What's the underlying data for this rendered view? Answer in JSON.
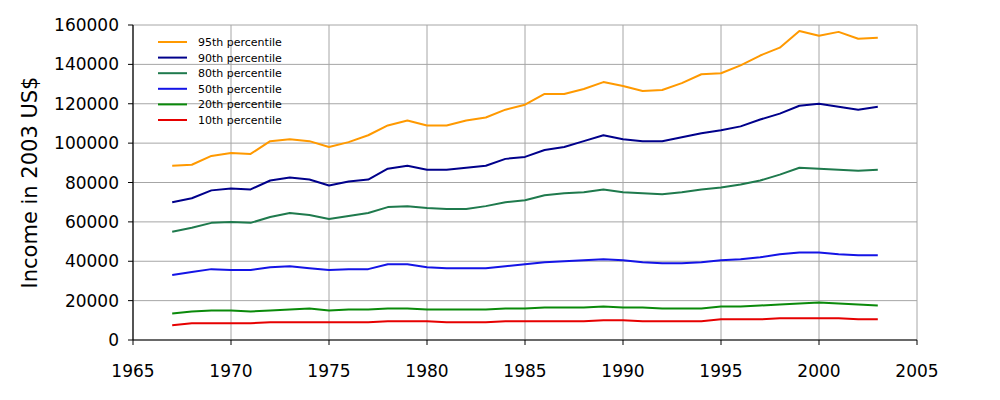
{
  "chart_data": {
    "type": "line",
    "y_label": "Income in 2003 US$",
    "x": [
      1967,
      1968,
      1969,
      1970,
      1971,
      1972,
      1973,
      1974,
      1975,
      1976,
      1977,
      1978,
      1979,
      1980,
      1981,
      1982,
      1983,
      1984,
      1985,
      1986,
      1987,
      1988,
      1989,
      1990,
      1991,
      1992,
      1993,
      1994,
      1995,
      1996,
      1997,
      1998,
      1999,
      2000,
      2001,
      2002,
      2003
    ],
    "xlim": [
      1965,
      2005
    ],
    "xticks": [
      1965,
      1970,
      1975,
      1980,
      1985,
      1990,
      1995,
      2000,
      2005
    ],
    "ylim": [
      0,
      160000
    ],
    "yticks": [
      0,
      20000,
      40000,
      60000,
      80000,
      100000,
      120000,
      140000,
      160000
    ],
    "grid": true,
    "legend": "upper left",
    "series": [
      {
        "name": "95th percentile",
        "color": "#ff9900",
        "values": [
          88500,
          89000,
          93500,
          95000,
          94500,
          101000,
          102000,
          101000,
          98000,
          100500,
          104000,
          109000,
          111500,
          109000,
          109000,
          111500,
          113000,
          117000,
          119500,
          125000,
          125000,
          127500,
          131000,
          129000,
          126500,
          127000,
          130500,
          135000,
          135500,
          139500,
          144500,
          148500,
          157000,
          154500,
          156500,
          153000,
          153500
        ]
      },
      {
        "name": "90th percentile",
        "color": "#00008b",
        "values": [
          70000,
          72000,
          76000,
          77000,
          76500,
          81000,
          82500,
          81500,
          78500,
          80500,
          81500,
          87000,
          88500,
          86500,
          86500,
          87500,
          88500,
          92000,
          93000,
          96500,
          98000,
          101000,
          104000,
          102000,
          101000,
          101000,
          103000,
          105000,
          106500,
          108500,
          112000,
          115000,
          119000,
          120000,
          118500,
          117000,
          118500
        ]
      },
      {
        "name": "80th percentile",
        "color": "#1f7a4d",
        "values": [
          55000,
          57000,
          59500,
          60000,
          59500,
          62500,
          64500,
          63500,
          61500,
          63000,
          64500,
          67500,
          68000,
          67000,
          66500,
          66500,
          68000,
          70000,
          71000,
          73500,
          74500,
          75000,
          76500,
          75000,
          74500,
          74000,
          75000,
          76500,
          77500,
          79000,
          81000,
          84000,
          87500,
          87000,
          86500,
          86000,
          86500
        ]
      },
      {
        "name": "50th percentile",
        "color": "#1414e6",
        "values": [
          33000,
          34500,
          36000,
          35500,
          35500,
          37000,
          37500,
          36500,
          35500,
          36000,
          36000,
          38500,
          38500,
          37000,
          36500,
          36500,
          36500,
          37500,
          38500,
          39500,
          40000,
          40500,
          41000,
          40500,
          39500,
          39000,
          39000,
          39500,
          40500,
          41000,
          42000,
          43500,
          44500,
          44500,
          43500,
          43000,
          43000
        ]
      },
      {
        "name": "20th percentile",
        "color": "#0a8a0a",
        "values": [
          13500,
          14500,
          15000,
          15000,
          14500,
          15000,
          15500,
          16000,
          15000,
          15500,
          15500,
          16000,
          16000,
          15500,
          15500,
          15500,
          15500,
          16000,
          16000,
          16500,
          16500,
          16500,
          17000,
          16500,
          16500,
          16000,
          16000,
          16000,
          17000,
          17000,
          17500,
          18000,
          18500,
          19000,
          18500,
          18000,
          17500
        ]
      },
      {
        "name": "10th percentile",
        "color": "#e60000",
        "values": [
          7500,
          8500,
          8500,
          8500,
          8500,
          9000,
          9000,
          9000,
          9000,
          9000,
          9000,
          9500,
          9500,
          9500,
          9000,
          9000,
          9000,
          9500,
          9500,
          9500,
          9500,
          9500,
          10000,
          10000,
          9500,
          9500,
          9500,
          9500,
          10500,
          10500,
          10500,
          11000,
          11000,
          11000,
          11000,
          10500,
          10500
        ]
      }
    ]
  }
}
